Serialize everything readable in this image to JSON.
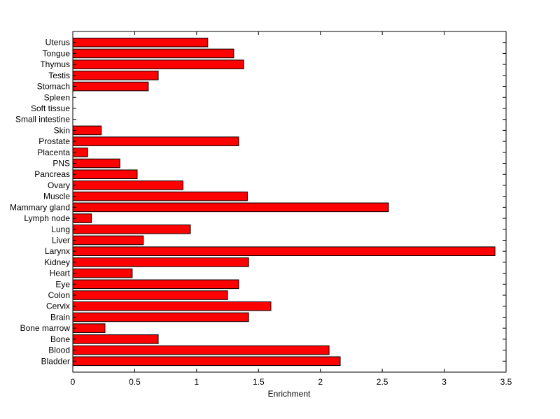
{
  "chart_data": {
    "type": "bar",
    "orientation": "horizontal",
    "title": "",
    "xlabel": "Enrichment",
    "ylabel": "",
    "xlim": [
      0,
      3.5
    ],
    "xticks": [
      "0",
      "0.5",
      "1",
      "1.5",
      "2",
      "2.5",
      "3",
      "3.5"
    ],
    "grid": false,
    "bar_color": "#ff0000",
    "categories": [
      "Bladder",
      "Blood",
      "Bone",
      "Bone marrow",
      "Brain",
      "Cervix",
      "Colon",
      "Eye",
      "Heart",
      "Kidney",
      "Larynx",
      "Liver",
      "Lung",
      "Lymph node",
      "Mammary gland",
      "Muscle",
      "Ovary",
      "Pancreas",
      "PNS",
      "Placenta",
      "Prostate",
      "Skin",
      "Small intestine",
      "Soft tissue",
      "Spleen",
      "Stomach",
      "Testis",
      "Thymus",
      "Tongue",
      "Uterus"
    ],
    "values": [
      2.16,
      2.07,
      0.69,
      0.26,
      1.42,
      1.6,
      1.25,
      1.34,
      0.48,
      1.42,
      3.41,
      0.57,
      0.95,
      0.15,
      2.55,
      1.41,
      0.89,
      0.52,
      0.38,
      0.12,
      1.34,
      0.23,
      0,
      0,
      0,
      0.61,
      0.69,
      1.38,
      1.3,
      1.09
    ]
  }
}
